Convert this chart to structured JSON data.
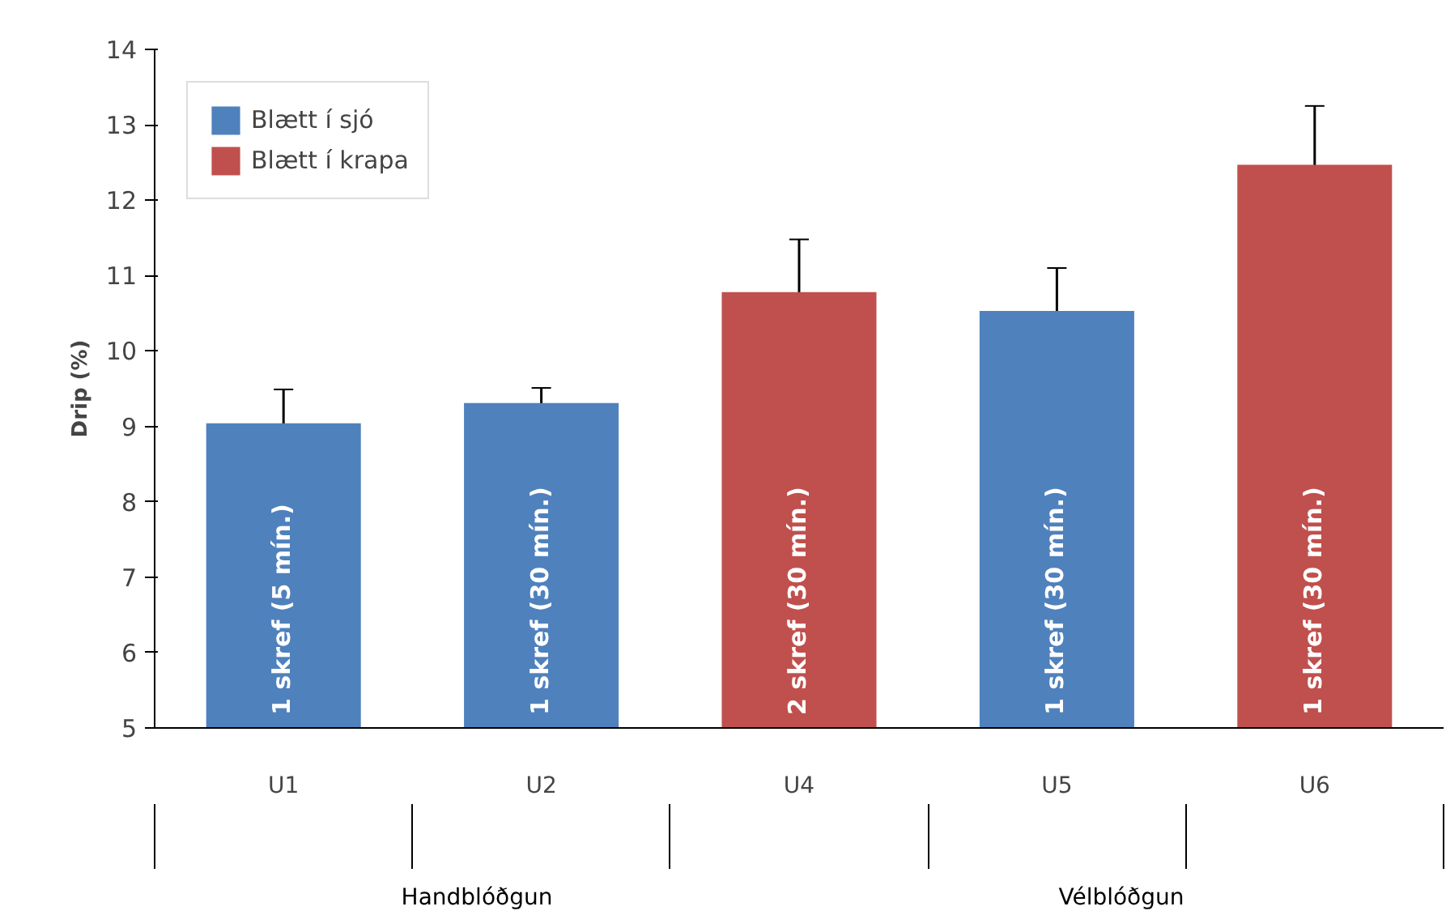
{
  "chart_data": {
    "type": "bar",
    "ylabel": "Drip (%)",
    "categories": [
      "U1",
      "U2",
      "U4",
      "U5",
      "U6"
    ],
    "series": [
      {
        "name": "Blætt í sjó",
        "color": "#4f81bd",
        "values": [
          9.04,
          9.31,
          null,
          10.53,
          null
        ],
        "errors": [
          0.45,
          0.2,
          null,
          0.57,
          null
        ]
      },
      {
        "name": "Blætt í krapa",
        "color": "#c0504d",
        "values": [
          null,
          null,
          10.78,
          null,
          12.47
        ],
        "errors": [
          null,
          null,
          0.7,
          null,
          0.78
        ]
      }
    ],
    "annotations": [
      {
        "text": "1 skref (5 mín.)",
        "x": "U1",
        "y": 5
      },
      {
        "text": "1 skref (30 mín.)",
        "x": "U2",
        "y": 5
      },
      {
        "text": "2 skref (30 mín.)",
        "x": "U4",
        "y": 5
      },
      {
        "text": "1 skref (30 mín.)",
        "x": "U5",
        "y": 5
      },
      {
        "text": "1 skref (30 mín.)",
        "x": "U6",
        "y": 5
      },
      "Handblóðgun",
      "Vélblóðgun"
    ],
    "ylim": [
      5,
      14
    ],
    "yticks": [
      5,
      6,
      7,
      8,
      9,
      10,
      11,
      12,
      13,
      14
    ],
    "grid": false,
    "legend": "top left"
  }
}
